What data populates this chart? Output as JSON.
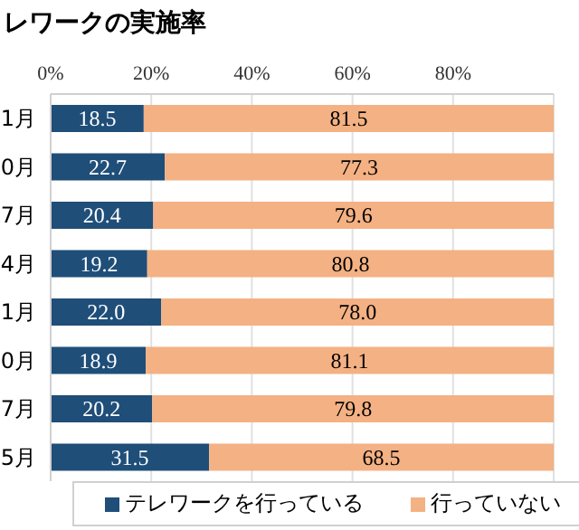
{
  "chart_data": {
    "type": "bar",
    "orientation": "horizontal",
    "stacked": true,
    "title": "レワークの実施率",
    "categories": [
      "1月",
      "0月",
      "7月",
      "4月",
      "1月",
      "0月",
      "7月",
      "5月"
    ],
    "series": [
      {
        "name": "テレワークを行っている",
        "color": "#1f4e79",
        "values": [
          18.5,
          22.7,
          20.4,
          19.2,
          22.0,
          18.9,
          20.2,
          31.5
        ],
        "value_labels": [
          "18.5",
          "22.7",
          "20.4",
          "19.2",
          "22.0",
          "18.9",
          "20.2",
          "31.5"
        ]
      },
      {
        "name": "行っていない",
        "color": "#f4b183",
        "values": [
          81.5,
          77.3,
          79.6,
          80.8,
          78.0,
          81.1,
          79.8,
          68.5
        ],
        "value_labels": [
          "81.5",
          "77.3",
          "79.6",
          "80.8",
          "78.0",
          "81.1",
          "79.8",
          "68.5"
        ]
      }
    ],
    "xlim": [
      0,
      100
    ],
    "xticks": [
      {
        "value": 0,
        "label": "0%"
      },
      {
        "value": 20,
        "label": "20%"
      },
      {
        "value": 40,
        "label": "40%"
      },
      {
        "value": 60,
        "label": "60%"
      },
      {
        "value": 80,
        "label": "80%"
      }
    ],
    "grid": "x",
    "legend": "bottom"
  }
}
